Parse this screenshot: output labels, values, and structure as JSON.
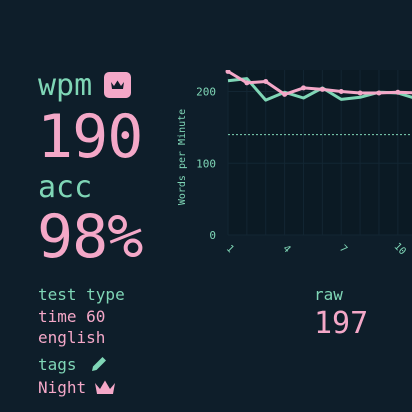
{
  "stats": {
    "wpm_label": "wpm",
    "wpm_value": "190",
    "acc_label": "acc",
    "acc_value": "98%",
    "raw_label": "raw",
    "raw_value": "197",
    "personal_best_icon": "crown-icon"
  },
  "test_info": {
    "label": "test type",
    "mode": "time 60",
    "language": "english"
  },
  "tags": {
    "label": "tags",
    "edit_icon": "pencil-icon",
    "items": [
      {
        "name": "Night",
        "icon": "crown-icon"
      }
    ]
  },
  "colors": {
    "background": "#0e1e2a",
    "main": "#f4a8c8",
    "sub": "#7fd6b6"
  },
  "chart_data": {
    "type": "line",
    "ylabel": "Words per Minute",
    "xlabel": "",
    "title": "",
    "x": [
      1,
      2,
      3,
      4,
      5,
      6,
      7,
      8,
      9,
      10,
      11
    ],
    "xticks": [
      1,
      4,
      7,
      10
    ],
    "yticks": [
      0,
      100,
      200
    ],
    "ylim": [
      0,
      230
    ],
    "series": [
      {
        "values": [
          228,
          212,
          214,
          196,
          205,
          203,
          200,
          198,
          198,
          199,
          198
        ]
      },
      {
        "values": [
          215,
          218,
          188,
          199,
          191,
          205,
          189,
          192,
          199,
          198,
          190
        ]
      }
    ],
    "reference_line": 140
  }
}
